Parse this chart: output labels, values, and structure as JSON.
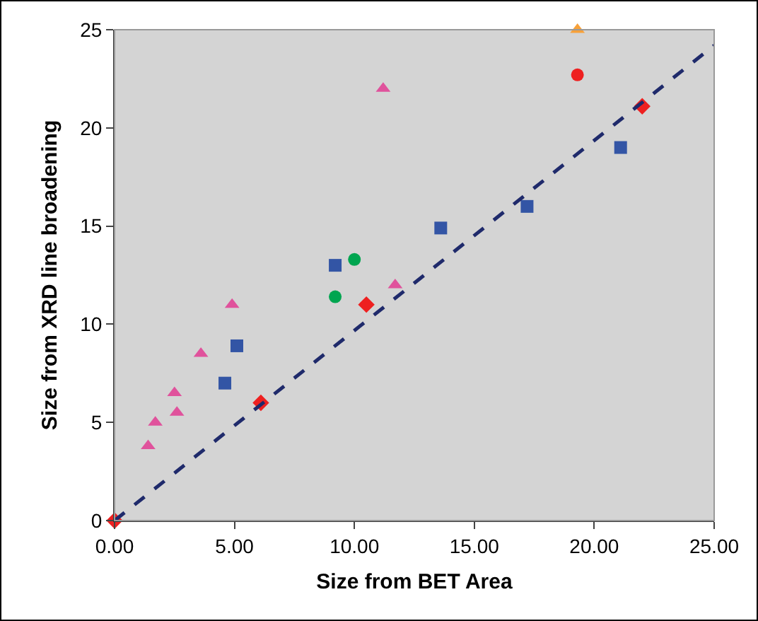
{
  "chart_data": {
    "type": "scatter",
    "xlabel": "Size from BET Area",
    "ylabel": "Size from XRD line broadening",
    "xlim": [
      0,
      25
    ],
    "ylim": [
      0,
      25
    ],
    "xticks": [
      {
        "value": 0,
        "label": "0.00"
      },
      {
        "value": 5,
        "label": "5.00"
      },
      {
        "value": 10,
        "label": "10.00"
      },
      {
        "value": 15,
        "label": "15.00"
      },
      {
        "value": 20,
        "label": "20.00"
      },
      {
        "value": 25,
        "label": "25.00"
      }
    ],
    "yticks": [
      0,
      5,
      10,
      15,
      20,
      25
    ],
    "grid": false,
    "series": [
      {
        "color": "#e0529c",
        "marker": "triangle",
        "x": [
          1.4,
          1.7,
          2.5,
          2.6,
          3.6,
          4.9,
          11.2,
          11.7
        ],
        "values": [
          3.8,
          5,
          6.5,
          5.5,
          8.5,
          11,
          22,
          12
        ]
      },
      {
        "color": "#3355a5",
        "marker": "square",
        "x": [
          4.6,
          5.1,
          9.2,
          13.6,
          17.2,
          21.1
        ],
        "values": [
          7,
          8.9,
          13,
          14.9,
          16,
          19
        ]
      },
      {
        "color": "#00a550",
        "marker": "circle",
        "x": [
          9.2,
          10.0
        ],
        "values": [
          11.4,
          13.3
        ]
      },
      {
        "color": "#ee2020",
        "marker": "diamond",
        "x": [
          0,
          6.1,
          10.5,
          22
        ],
        "values": [
          0,
          6,
          11,
          21.1
        ]
      },
      {
        "color": "#f7a13a",
        "marker": "triangle",
        "x": [
          19.3
        ],
        "values": [
          25
        ]
      },
      {
        "color": "#ee2020",
        "marker": "circle",
        "x": [
          19.3
        ],
        "values": [
          22.7
        ]
      },
      {
        "type": "line",
        "color": "#1f2a6b",
        "line_style": "dashed",
        "marker": "none",
        "x": [
          0,
          25
        ],
        "values": [
          0,
          24.2
        ]
      }
    ]
  }
}
